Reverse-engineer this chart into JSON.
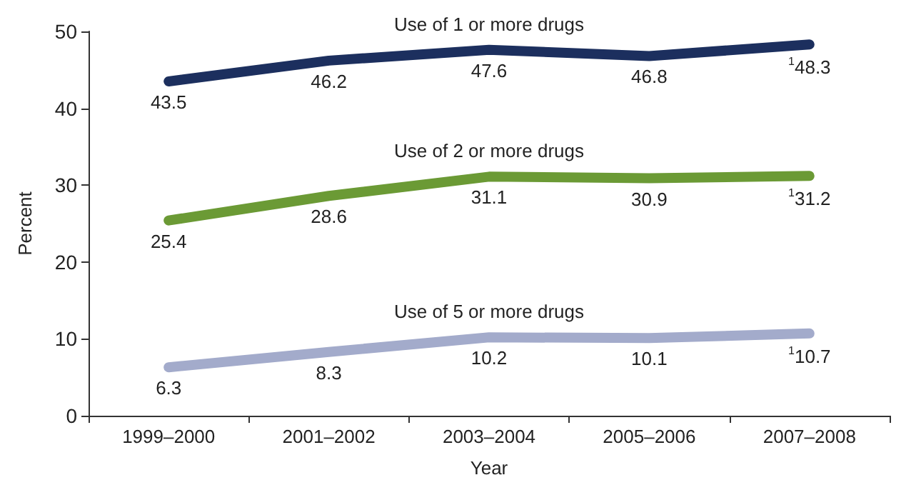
{
  "chart_data": {
    "type": "line",
    "xlabel": "Year",
    "ylabel": "Percent",
    "categories": [
      "1999–2000",
      "2001–2002",
      "2003–2004",
      "2005–2006",
      "2007–2008"
    ],
    "series": [
      {
        "name": "Use of 1 or more drugs",
        "color": "#1c2f5e",
        "values": [
          43.5,
          46.2,
          47.6,
          46.8,
          48.3
        ],
        "value_labels": [
          "43.5",
          "46.2",
          "47.6",
          "46.8",
          "$^{1}$48.3"
        ]
      },
      {
        "name": "Use of 2 or more drugs",
        "color": "#6b9a35",
        "values": [
          25.4,
          28.6,
          31.1,
          30.9,
          31.2
        ],
        "value_labels": [
          "25.4",
          "28.6",
          "31.1",
          "30.9",
          "$^{1}$31.2"
        ]
      },
      {
        "name": "Use of 5 or more drugs",
        "color": "#a3abcb",
        "values": [
          6.3,
          8.3,
          10.2,
          10.1,
          10.7
        ],
        "value_labels": [
          "6.3",
          "8.3",
          "10.2",
          "10.1",
          "$^{1}$10.7"
        ]
      }
    ],
    "ylim": [
      0,
      50
    ],
    "yticks": [
      0,
      10,
      20,
      30,
      40,
      50
    ],
    "grid": false,
    "legend": false,
    "marker": "none",
    "line_style": "solid"
  }
}
